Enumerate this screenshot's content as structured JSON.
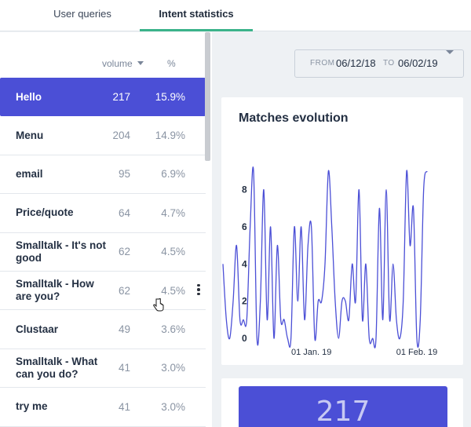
{
  "tabs": [
    {
      "label": "User queries"
    },
    {
      "label": "Intent statistics"
    }
  ],
  "list": {
    "header": {
      "volume": "volume",
      "percent": "%"
    },
    "rows": [
      {
        "name": "Hello",
        "volume": "217",
        "percent": "15.9%",
        "selected": true
      },
      {
        "name": "Menu",
        "volume": "204",
        "percent": "14.9%"
      },
      {
        "name": "email",
        "volume": "95",
        "percent": "6.9%"
      },
      {
        "name": "Price/quote",
        "volume": "64",
        "percent": "4.7%"
      },
      {
        "name": "Smalltalk - It's not good",
        "volume": "62",
        "percent": "4.5%"
      },
      {
        "name": "Smalltalk - How are you?",
        "volume": "62",
        "percent": "4.5%",
        "hovered": true
      },
      {
        "name": "Clustaar",
        "volume": "49",
        "percent": "3.6%"
      },
      {
        "name": "Smalltalk - What can you do?",
        "volume": "41",
        "percent": "3.0%"
      },
      {
        "name": "try me",
        "volume": "41",
        "percent": "3.0%"
      }
    ]
  },
  "date_filter": {
    "from_label": "FROM",
    "from_value": "06/12/18",
    "to_label": "TO",
    "to_value": "06/02/19"
  },
  "chart": {
    "title": "Matches evolution"
  },
  "chart_data": {
    "type": "line",
    "title": "Matches evolution",
    "xlabel": "",
    "ylabel": "",
    "ylim": [
      0,
      9
    ],
    "yticks": [
      "0",
      "2",
      "4",
      "6",
      "8"
    ],
    "xticks": [
      {
        "label": "01 Jan. 19",
        "index": 26
      },
      {
        "label": "01 Feb. 19",
        "index": 57
      }
    ],
    "grid": false,
    "colors": {
      "line": "#4b4fd6"
    },
    "series": [
      {
        "values": [
          4,
          1,
          0,
          2,
          5,
          1,
          1,
          1,
          6,
          9,
          0,
          2,
          8,
          1,
          6,
          0,
          5,
          1,
          1,
          0,
          0,
          6,
          2,
          6,
          1,
          5,
          6,
          0,
          2,
          2,
          4,
          9,
          6,
          2,
          0,
          2,
          2,
          1,
          4,
          2,
          8,
          1,
          4,
          0,
          0,
          0,
          7,
          1,
          8,
          1,
          4,
          1,
          0,
          2,
          9,
          5,
          7,
          0,
          1,
          8,
          9
        ]
      }
    ]
  },
  "kpi": {
    "value": "217"
  },
  "colors": {
    "accent": "#4b4fd6",
    "tab_underline": "#3bb38a"
  }
}
